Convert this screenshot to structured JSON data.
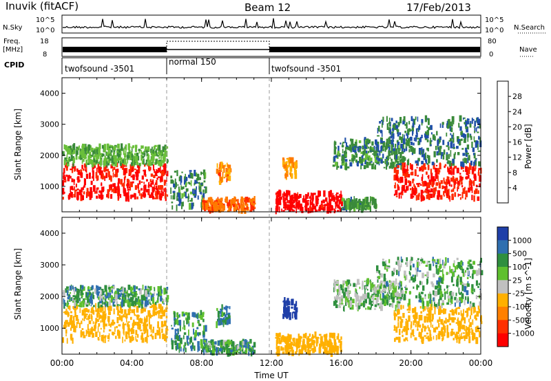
{
  "header": {
    "station": "Inuvik (fitACF)",
    "beam": "Beam 12",
    "date": "17/Feb/2013"
  },
  "strip_labels": {
    "nsky": "N.Sky",
    "freq_line1": "Freq.",
    "freq_line2": "[MHz]",
    "cpid": "CPID",
    "nsearch": "N.Search",
    "nave": "Nave",
    "nsky_ticks": [
      "10^5",
      "10^0"
    ],
    "nsearch_ticks": [
      "10^5",
      "10^0"
    ],
    "freq_ticks": [
      "18",
      "8"
    ],
    "nave_ticks": [
      "80",
      "0"
    ]
  },
  "cpid_segments": [
    {
      "label": "twofsound -3501",
      "start_hour": 0,
      "end_hour": 6
    },
    {
      "label": "normal 150",
      "start_hour": 6,
      "end_hour": 12
    },
    {
      "label": "twofsound -3501",
      "start_hour": 12,
      "end_hour": 24
    }
  ],
  "colors": {
    "power": [
      "#0019ff",
      "#1f4fa8",
      "#3a8a3a",
      "#6abf3a",
      "#ffb000",
      "#ff7a00",
      "#ff2a00",
      "#ff0000"
    ],
    "velocity": [
      "#1f3fa8",
      "#2f6fb0",
      "#2f8f3f",
      "#5fc02f",
      "#c0c0c0",
      "#ffb000",
      "#ff8000",
      "#ff3000",
      "#ff0000"
    ],
    "ground_scatter": "#bebebe"
  },
  "chart_data": [
    {
      "type": "heatmap",
      "title": "Power",
      "xlabel": "Time UT",
      "ylabel": "Slant Range [km]",
      "xlim": [
        0,
        24
      ],
      "ylim": [
        180,
        4500
      ],
      "x_ticks": [
        "00:00",
        "04:00",
        "08:00",
        "12:00",
        "16:00",
        "20:00",
        "00:00"
      ],
      "y_ticks": [
        1000,
        2000,
        3000,
        4000
      ],
      "colorbar": {
        "label": "Power [dB]",
        "ticks": [
          "4",
          "8",
          "12",
          "16",
          "20",
          "24",
          "28"
        ],
        "range": [
          0,
          30
        ]
      },
      "scatter_regions": [
        {
          "t0": 0,
          "t1": 6,
          "r0": 600,
          "r1": 1700,
          "value": 27
        },
        {
          "t0": 0,
          "t1": 6,
          "r0": 1700,
          "r1": 2300,
          "value": 12
        },
        {
          "t0": 6.2,
          "t1": 8.2,
          "r0": 300,
          "r1": 1500,
          "value": 9
        },
        {
          "t0": 8,
          "t1": 11,
          "r0": 200,
          "r1": 600,
          "value": 22
        },
        {
          "t0": 8.8,
          "t1": 9.6,
          "r0": 1100,
          "r1": 1700,
          "value": 20
        },
        {
          "t0": 12.2,
          "t1": 16,
          "r0": 200,
          "r1": 800,
          "value": 29
        },
        {
          "t0": 16,
          "t1": 18,
          "r0": 250,
          "r1": 600,
          "value": 10
        },
        {
          "t0": 12.6,
          "t1": 13.4,
          "r0": 1300,
          "r1": 1900,
          "value": 18
        },
        {
          "t0": 15.5,
          "t1": 19.5,
          "r0": 1600,
          "r1": 2500,
          "value": 9
        },
        {
          "t0": 19,
          "t1": 24,
          "r0": 600,
          "r1": 1700,
          "value": 26
        },
        {
          "t0": 18,
          "t1": 24,
          "r0": 1700,
          "r1": 3200,
          "value": 8
        }
      ]
    },
    {
      "type": "heatmap",
      "title": "Velocity",
      "xlabel": "Time UT",
      "ylabel": "Slant Range [km]",
      "xlim": [
        0,
        24
      ],
      "ylim": [
        180,
        4500
      ],
      "x_ticks": [
        "00:00",
        "04:00",
        "08:00",
        "12:00",
        "16:00",
        "20:00",
        "00:00"
      ],
      "y_ticks": [
        1000,
        2000,
        3000,
        4000
      ],
      "colorbar": {
        "label": "Velocity [m s^-1]",
        "ticks": [
          "1000",
          "500",
          "100",
          "25",
          "-25",
          "-100",
          "-500",
          "-1000"
        ]
      },
      "scatter_regions": [
        {
          "t0": 0,
          "t1": 6,
          "r0": 600,
          "r1": 1700,
          "value": -300
        },
        {
          "t0": 0,
          "t1": 6,
          "r0": 1700,
          "r1": 2300,
          "value": 50
        },
        {
          "t0": 6.2,
          "t1": 8.2,
          "r0": 300,
          "r1": 1500,
          "value": 80
        },
        {
          "t0": 8,
          "t1": 11,
          "r0": 200,
          "r1": 600,
          "value": 60
        },
        {
          "t0": 8.8,
          "t1": 9.6,
          "r0": 1100,
          "r1": 1700,
          "value": 100
        },
        {
          "t0": 12.2,
          "t1": 16,
          "r0": 200,
          "r1": 800,
          "value": -200
        },
        {
          "t0": 12.6,
          "t1": 13.4,
          "r0": 1300,
          "r1": 1900,
          "value": 600
        },
        {
          "t0": 15.5,
          "t1": 19.5,
          "r0": 1600,
          "r1": 2500,
          "value": 0
        },
        {
          "t0": 19,
          "t1": 24,
          "r0": 600,
          "r1": 1700,
          "value": -400
        },
        {
          "t0": 18,
          "t1": 24,
          "r0": 1700,
          "r1": 3200,
          "value": 20
        }
      ]
    }
  ]
}
